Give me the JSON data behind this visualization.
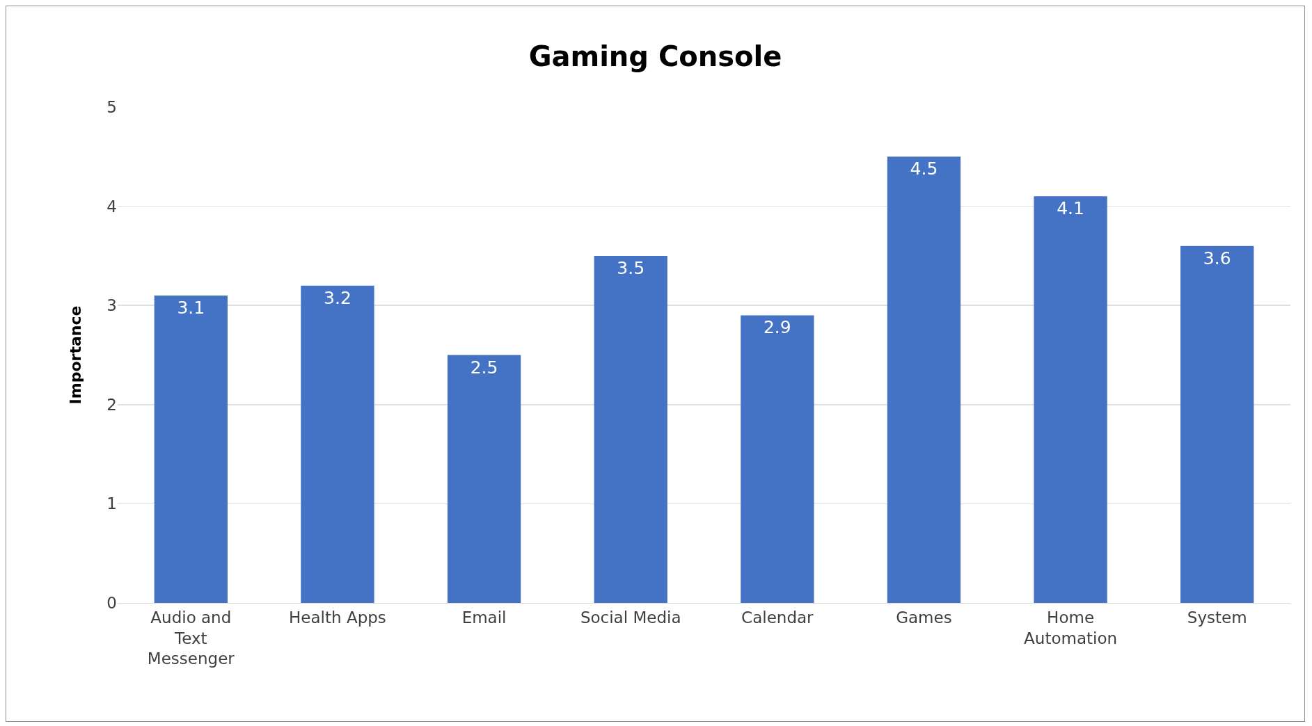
{
  "chart_data": {
    "type": "bar",
    "title": "Gaming Console",
    "ylabel": "Importance",
    "categories": [
      "Audio and Text Messenger",
      "Health Apps",
      "Email",
      "Social Media",
      "Calendar",
      "Games",
      "Home Automation",
      "System"
    ],
    "values": [
      3.1,
      3.2,
      2.5,
      3.5,
      2.9,
      4.5,
      4.1,
      3.6
    ],
    "color": "#4472c4",
    "ylim": [
      0,
      5
    ],
    "yticks": [
      0,
      1,
      2,
      3,
      4,
      5
    ],
    "grid": "y",
    "data_labels": true
  }
}
